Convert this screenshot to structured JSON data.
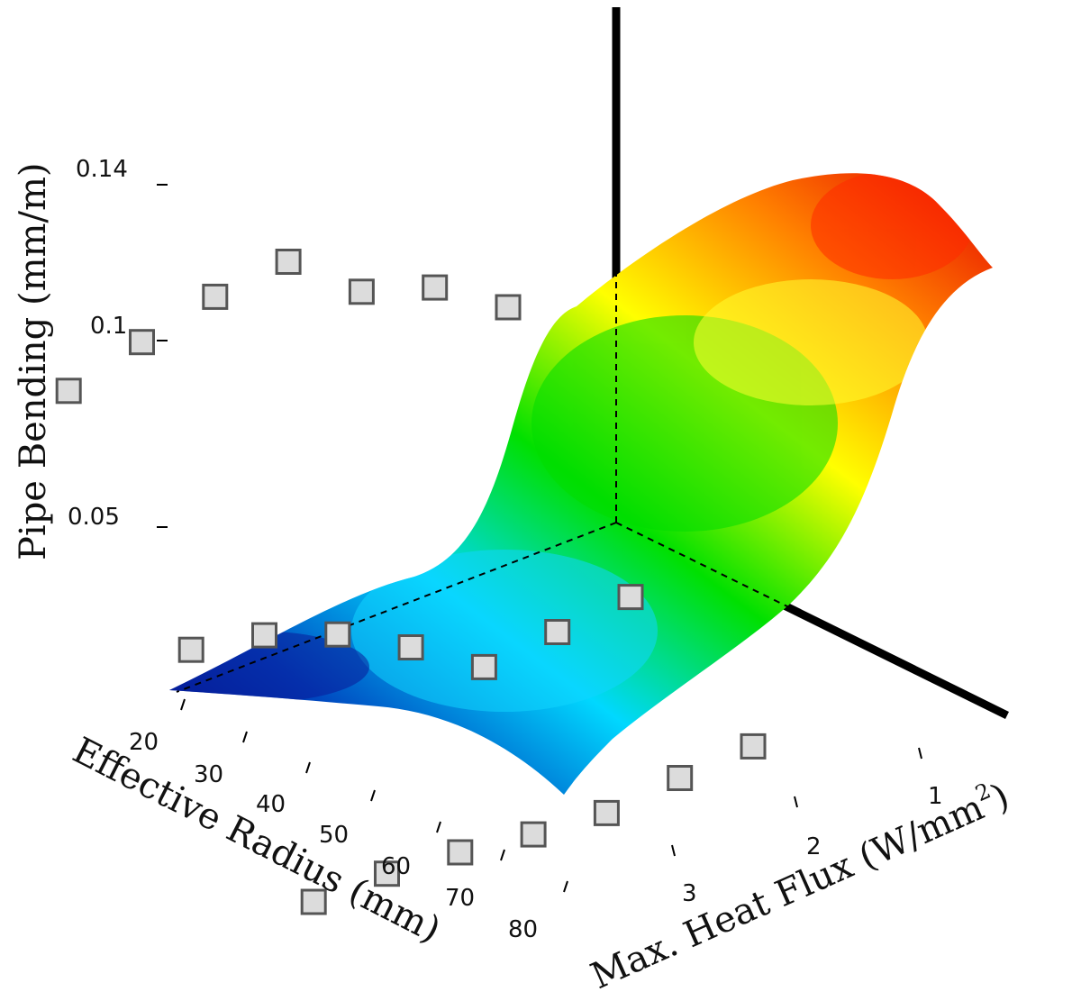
{
  "chart_data": {
    "type": "surface3d",
    "title": "",
    "zlabel": "Pipe Bending (mm/m)",
    "xlabel": "Effective Radius (mm)",
    "ylabel_main": "Max. Heat Flux (W/mm",
    "ylabel_sup": "2",
    "ylabel_end": ")",
    "x_ticks": [
      "20",
      "30",
      "40",
      "50",
      "60",
      "70",
      "80"
    ],
    "y_ticks": [
      "1",
      "2",
      "3"
    ],
    "z_ticks": [
      "0.14",
      "0.1",
      "0.05"
    ],
    "xlim": [
      20,
      80
    ],
    "ylim": [
      0.5,
      3.5
    ],
    "zlim": [
      0,
      0.14
    ],
    "colormap": [
      "#00007a",
      "#0048c0",
      "#00d8ff",
      "#00e000",
      "#ffff00",
      "#ff8000",
      "#e60000"
    ],
    "surface": {
      "x": [
        20,
        30,
        40,
        50,
        60,
        70,
        80
      ],
      "y": [
        0.5,
        1,
        1.5,
        2,
        2.5,
        3,
        3.5
      ],
      "z": [
        [
          0.137,
          0.14,
          0.12,
          0.06,
          0.025,
          0.01,
          0.003
        ],
        [
          0.138,
          0.141,
          0.122,
          0.065,
          0.028,
          0.012,
          0.004
        ],
        [
          0.138,
          0.142,
          0.125,
          0.07,
          0.031,
          0.014,
          0.006
        ],
        [
          0.137,
          0.143,
          0.128,
          0.075,
          0.034,
          0.017,
          0.008
        ],
        [
          0.134,
          0.141,
          0.127,
          0.078,
          0.037,
          0.02,
          0.011
        ],
        [
          0.13,
          0.136,
          0.122,
          0.077,
          0.038,
          0.022,
          0.014
        ],
        [
          0.122,
          0.127,
          0.113,
          0.071,
          0.036,
          0.023,
          0.016
        ]
      ]
    },
    "measured_points": [
      {
        "x": 20,
        "y": 1,
        "z": 0.012
      },
      {
        "x": 20,
        "y": 2,
        "z": 0.038
      },
      {
        "x": 20,
        "y": 3,
        "z": 0.105
      },
      {
        "x": 30,
        "y": 1,
        "z": 0.011
      },
      {
        "x": 30,
        "y": 2,
        "z": 0.036
      },
      {
        "x": 30,
        "y": 3,
        "z": 0.119
      },
      {
        "x": 40,
        "y": 1,
        "z": 0.009
      },
      {
        "x": 40,
        "y": 2,
        "z": 0.034
      },
      {
        "x": 40,
        "y": 3,
        "z": 0.126
      },
      {
        "x": 50,
        "y": 1,
        "z": 0.011
      },
      {
        "x": 50,
        "y": 2,
        "z": 0.048
      },
      {
        "x": 50,
        "y": 3,
        "z": 0.143
      },
      {
        "x": 60,
        "y": 1,
        "z": 0.014
      },
      {
        "x": 60,
        "y": 2,
        "z": 0.06
      },
      {
        "x": 60,
        "y": 3,
        "z": 0.141
      },
      {
        "x": 70,
        "y": 1,
        "z": 0.016
      },
      {
        "x": 70,
        "y": 2,
        "z": 0.068
      },
      {
        "x": 70,
        "y": 3,
        "z": 0.136
      },
      {
        "x": 80,
        "y": 1,
        "z": 0.016
      },
      {
        "x": 80,
        "y": 2,
        "z": 0.072
      },
      {
        "x": 80,
        "y": 3,
        "z": 0.13
      }
    ],
    "grid": false,
    "legend": "none"
  }
}
